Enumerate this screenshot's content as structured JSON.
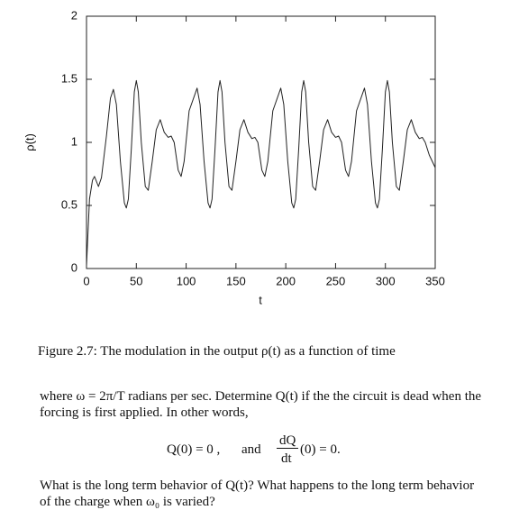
{
  "chart_data": {
    "type": "line",
    "xlabel": "t",
    "ylabel": "ρ(t)",
    "xlim": [
      0,
      350
    ],
    "xticks": [
      0,
      50,
      100,
      150,
      200,
      250,
      300,
      350
    ],
    "ylim": [
      0,
      2
    ],
    "yticks": [
      0,
      0.5,
      1,
      1.5,
      2
    ],
    "color": "#222222",
    "x": [
      0,
      3,
      6,
      8,
      12,
      15,
      20,
      24,
      27,
      30,
      34,
      38,
      40,
      42,
      45,
      48,
      50,
      52,
      55,
      59,
      62,
      66,
      70,
      74,
      78,
      82,
      85,
      88,
      92,
      95,
      98,
      103,
      111,
      114,
      118,
      122,
      124,
      126,
      129,
      132,
      134,
      136,
      139,
      143,
      146,
      150,
      154,
      158,
      162,
      166,
      169,
      172,
      176,
      179,
      182,
      187,
      195,
      198,
      202,
      206,
      208,
      210,
      213,
      216,
      218,
      220,
      223,
      227,
      230,
      234,
      238,
      242,
      246,
      250,
      253,
      256,
      260,
      263,
      266,
      271,
      279,
      282,
      286,
      290,
      292,
      294,
      297,
      300,
      302,
      304,
      307,
      311,
      314,
      318,
      322,
      326,
      330,
      334,
      337,
      340,
      344,
      350
    ],
    "values": [
      0.02,
      0.55,
      0.7,
      0.73,
      0.65,
      0.72,
      1.05,
      1.35,
      1.42,
      1.3,
      0.85,
      0.52,
      0.48,
      0.55,
      0.95,
      1.4,
      1.49,
      1.4,
      1.0,
      0.65,
      0.62,
      0.85,
      1.1,
      1.18,
      1.08,
      1.04,
      1.05,
      1.0,
      0.78,
      0.73,
      0.85,
      1.25,
      1.43,
      1.3,
      0.85,
      0.52,
      0.48,
      0.55,
      0.95,
      1.4,
      1.49,
      1.4,
      1.0,
      0.65,
      0.62,
      0.85,
      1.1,
      1.18,
      1.08,
      1.03,
      1.04,
      1.0,
      0.78,
      0.73,
      0.85,
      1.25,
      1.43,
      1.3,
      0.85,
      0.52,
      0.48,
      0.55,
      0.95,
      1.4,
      1.49,
      1.4,
      1.0,
      0.65,
      0.62,
      0.85,
      1.1,
      1.18,
      1.08,
      1.04,
      1.05,
      1.0,
      0.78,
      0.73,
      0.85,
      1.25,
      1.43,
      1.3,
      0.85,
      0.52,
      0.48,
      0.55,
      0.95,
      1.4,
      1.49,
      1.4,
      1.0,
      0.65,
      0.62,
      0.85,
      1.1,
      1.18,
      1.08,
      1.03,
      1.04,
      1.0,
      0.9,
      0.8
    ]
  },
  "caption": "Figure 2.7: The modulation in the output ρ(t) as a function of time",
  "paragraph1": "where ω = 2π/T radians per sec. Determine Q(t) if the the circuit is dead when the forcing is first applied. In other words,",
  "equation": {
    "left": "Q(0) = 0 ,",
    "conj": "and",
    "num": "dQ",
    "den": "dt",
    "right": "(0) = 0."
  },
  "paragraph2": "What is the long term behavior of Q(t)? What happens to the long term behavior of the charge when ω₀ is varied?"
}
